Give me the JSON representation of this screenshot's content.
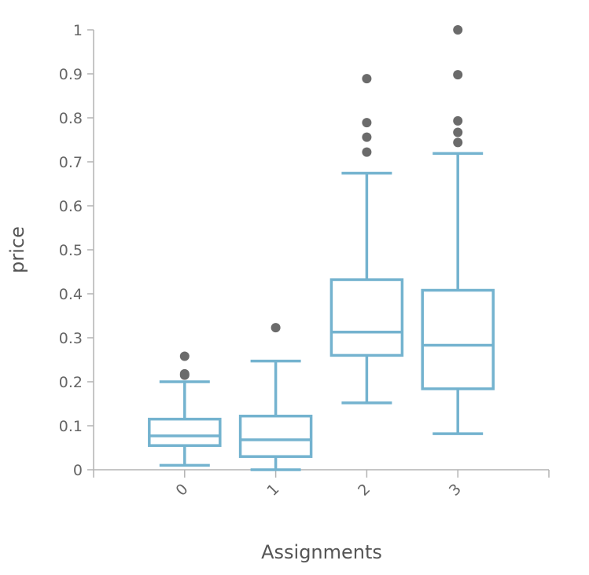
{
  "chart_data": {
    "type": "boxplot",
    "xlabel": "Assignments",
    "ylabel": "price",
    "ylim": [
      0,
      1
    ],
    "yticks": [
      0,
      0.1,
      0.2,
      0.3,
      0.4,
      0.5,
      0.6,
      0.7,
      0.8,
      0.9,
      1
    ],
    "ytick_labels": [
      "0",
      "0.1",
      "0.2",
      "0.3",
      "0.4",
      "0.5",
      "0.6",
      "0.7",
      "0.8",
      "0.9",
      "1"
    ],
    "categories": [
      "0",
      "1",
      "2",
      "3"
    ],
    "box_color": "#74b3cf",
    "outlier_color": "#6b6b6b",
    "boxes": [
      {
        "category": "0",
        "whisker_low": 0.01,
        "q1": 0.055,
        "median": 0.077,
        "q3": 0.115,
        "whisker_high": 0.2,
        "outliers": [
          0.215,
          0.218,
          0.258
        ]
      },
      {
        "category": "1",
        "whisker_low": 0.0,
        "q1": 0.03,
        "median": 0.068,
        "q3": 0.122,
        "whisker_high": 0.247,
        "outliers": [
          0.323
        ]
      },
      {
        "category": "2",
        "whisker_low": 0.152,
        "q1": 0.26,
        "median": 0.313,
        "q3": 0.432,
        "whisker_high": 0.674,
        "outliers": [
          0.722,
          0.756,
          0.789,
          0.889
        ]
      },
      {
        "category": "3",
        "whisker_low": 0.082,
        "q1": 0.184,
        "median": 0.283,
        "q3": 0.408,
        "whisker_high": 0.719,
        "outliers": [
          0.744,
          0.767,
          0.793,
          0.898,
          1.0
        ]
      }
    ]
  }
}
